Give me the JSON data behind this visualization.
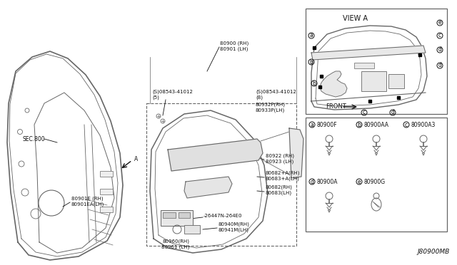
{
  "bg_color": "#ffffff",
  "line_color": "#666666",
  "dark_color": "#111111",
  "title_code": "J80900MB",
  "view_a_label": "VIEW A",
  "front_label": "FRONT",
  "sec_label": "SEC.800"
}
